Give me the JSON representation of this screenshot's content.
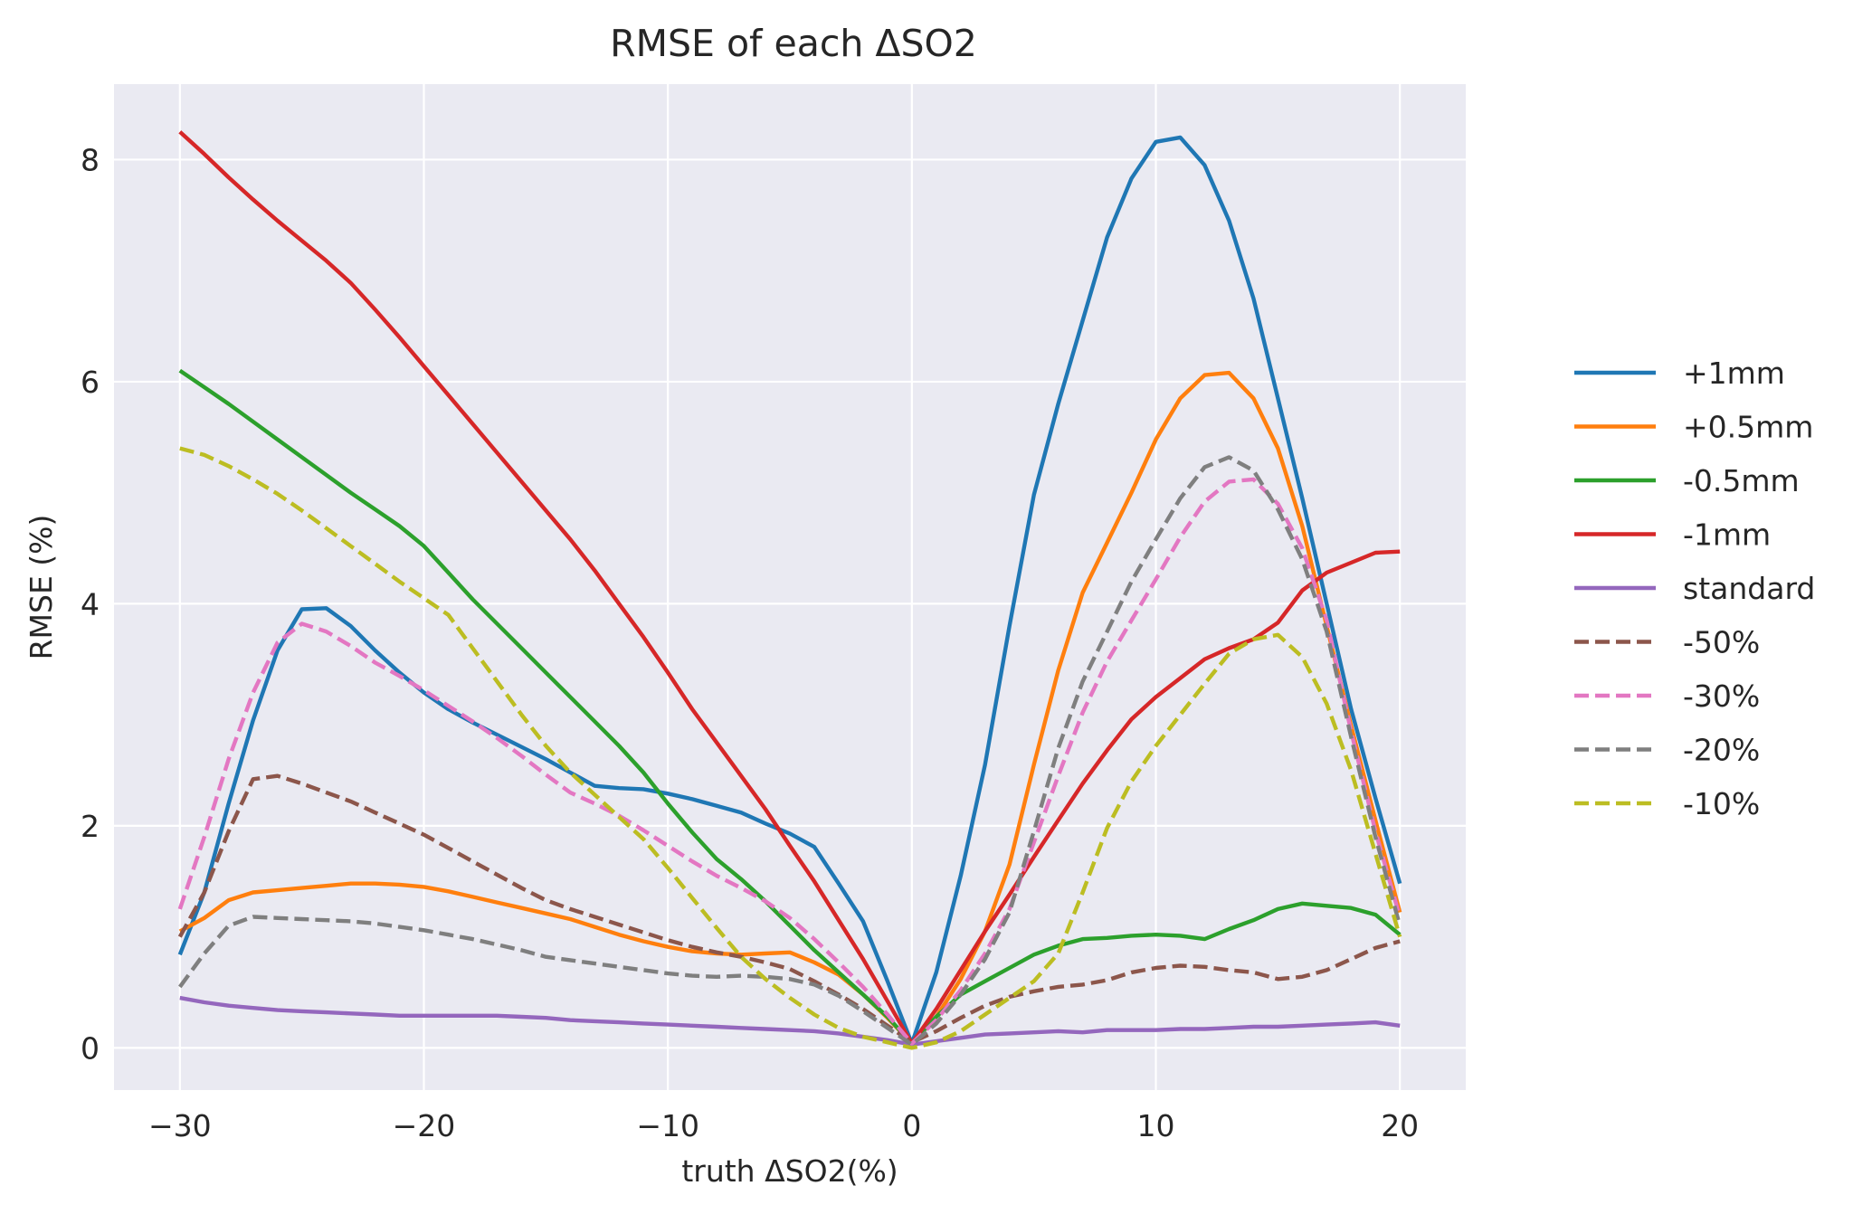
{
  "chart_data": {
    "type": "line",
    "title": "RMSE of each ΔSO2",
    "xlabel": "truth ΔSO2(%)",
    "ylabel": "RMSE (%)",
    "xlim": [
      -32.7,
      22.7
    ],
    "ylim": [
      -0.38,
      8.68
    ],
    "xticks": [
      -30,
      -20,
      -10,
      0,
      10,
      20
    ],
    "xtick_labels": [
      "−30",
      "−20",
      "−10",
      "0",
      "10",
      "20"
    ],
    "yticks": [
      0,
      2,
      4,
      6,
      8
    ],
    "ytick_labels": [
      "0",
      "2",
      "4",
      "6",
      "8"
    ],
    "grid": true,
    "legend_position": "right, outside plot",
    "x": [
      -30,
      -29,
      -28,
      -27,
      -26,
      -25,
      -24,
      -23,
      -22,
      -21,
      -20,
      -19,
      -18,
      -17,
      -16,
      -15,
      -14,
      -13,
      -12,
      -11,
      -10,
      -9,
      -8,
      -7,
      -6,
      -5,
      -4,
      -3,
      -2,
      -1,
      0,
      1,
      2,
      3,
      4,
      5,
      6,
      7,
      8,
      9,
      10,
      11,
      12,
      13,
      14,
      15,
      16,
      17,
      18,
      19,
      20
    ],
    "series": [
      {
        "name": "+1mm",
        "color": "#1f77b4",
        "style": "solid",
        "values": [
          0.84,
          1.4,
          2.2,
          2.95,
          3.58,
          3.95,
          3.96,
          3.8,
          3.58,
          3.38,
          3.2,
          3.05,
          2.93,
          2.82,
          2.71,
          2.6,
          2.48,
          2.36,
          2.34,
          2.33,
          2.29,
          2.24,
          2.18,
          2.12,
          2.02,
          1.93,
          1.81,
          1.48,
          1.14,
          0.6,
          0.04,
          0.68,
          1.55,
          2.55,
          3.8,
          4.98,
          5.8,
          6.55,
          7.3,
          7.83,
          8.16,
          8.2,
          7.95,
          7.45,
          6.75,
          5.85,
          4.95,
          4.0,
          3.05,
          2.25,
          1.48
        ]
      },
      {
        "name": "+0.5mm",
        "color": "#ff7f0e",
        "style": "solid",
        "values": [
          1.05,
          1.17,
          1.33,
          1.4,
          1.42,
          1.44,
          1.46,
          1.48,
          1.48,
          1.47,
          1.45,
          1.41,
          1.36,
          1.31,
          1.26,
          1.21,
          1.16,
          1.09,
          1.02,
          0.96,
          0.91,
          0.87,
          0.85,
          0.84,
          0.85,
          0.86,
          0.77,
          0.66,
          0.48,
          0.27,
          0.04,
          0.28,
          0.62,
          1.05,
          1.65,
          2.55,
          3.4,
          4.1,
          4.55,
          5.0,
          5.48,
          5.85,
          6.06,
          6.08,
          5.85,
          5.4,
          4.7,
          3.8,
          2.9,
          2.05,
          1.22
        ]
      },
      {
        "name": "-0.5mm",
        "color": "#2ca02c",
        "style": "solid",
        "values": [
          6.1,
          5.95,
          5.8,
          5.64,
          5.48,
          5.32,
          5.16,
          5.0,
          4.85,
          4.7,
          4.52,
          4.28,
          4.04,
          3.82,
          3.6,
          3.38,
          3.16,
          2.94,
          2.72,
          2.48,
          2.2,
          1.94,
          1.7,
          1.52,
          1.32,
          1.1,
          0.88,
          0.68,
          0.48,
          0.28,
          0.04,
          0.28,
          0.48,
          0.6,
          0.72,
          0.84,
          0.92,
          0.98,
          0.99,
          1.01,
          1.02,
          1.01,
          0.98,
          1.07,
          1.15,
          1.25,
          1.3,
          1.28,
          1.26,
          1.2,
          1.02
        ]
      },
      {
        "name": "-1mm",
        "color": "#d62728",
        "style": "solid",
        "values": [
          8.25,
          8.05,
          7.84,
          7.64,
          7.45,
          7.27,
          7.09,
          6.89,
          6.65,
          6.4,
          6.14,
          5.88,
          5.62,
          5.36,
          5.1,
          4.84,
          4.58,
          4.3,
          4.0,
          3.7,
          3.38,
          3.05,
          2.75,
          2.45,
          2.15,
          1.82,
          1.5,
          1.15,
          0.8,
          0.42,
          0.04,
          0.35,
          0.7,
          1.05,
          1.38,
          1.72,
          2.05,
          2.38,
          2.68,
          2.96,
          3.16,
          3.33,
          3.5,
          3.6,
          3.68,
          3.83,
          4.12,
          4.28,
          4.37,
          4.46,
          4.47
        ]
      },
      {
        "name": "standard",
        "color": "#9467bd",
        "style": "solid",
        "values": [
          0.45,
          0.41,
          0.38,
          0.36,
          0.34,
          0.33,
          0.32,
          0.31,
          0.3,
          0.29,
          0.29,
          0.29,
          0.29,
          0.29,
          0.28,
          0.27,
          0.25,
          0.24,
          0.23,
          0.22,
          0.21,
          0.2,
          0.19,
          0.18,
          0.17,
          0.16,
          0.15,
          0.13,
          0.1,
          0.07,
          0.03,
          0.06,
          0.09,
          0.12,
          0.13,
          0.14,
          0.15,
          0.14,
          0.16,
          0.16,
          0.16,
          0.17,
          0.17,
          0.18,
          0.19,
          0.19,
          0.2,
          0.21,
          0.22,
          0.23,
          0.2
        ]
      },
      {
        "name": "-50%",
        "color": "#8c564b",
        "style": "dashed",
        "values": [
          1.0,
          1.4,
          1.95,
          2.42,
          2.45,
          2.38,
          2.3,
          2.22,
          2.12,
          2.02,
          1.92,
          1.8,
          1.68,
          1.56,
          1.44,
          1.33,
          1.25,
          1.18,
          1.11,
          1.04,
          0.97,
          0.91,
          0.86,
          0.82,
          0.77,
          0.71,
          0.6,
          0.48,
          0.35,
          0.2,
          0.05,
          0.15,
          0.27,
          0.38,
          0.46,
          0.51,
          0.55,
          0.57,
          0.61,
          0.68,
          0.72,
          0.74,
          0.73,
          0.7,
          0.68,
          0.62,
          0.64,
          0.7,
          0.8,
          0.9,
          0.96
        ]
      },
      {
        "name": "-30%",
        "color": "#e377c2",
        "style": "dashed",
        "values": [
          1.25,
          1.9,
          2.6,
          3.2,
          3.65,
          3.82,
          3.75,
          3.62,
          3.47,
          3.35,
          3.22,
          3.08,
          2.94,
          2.79,
          2.63,
          2.46,
          2.3,
          2.2,
          2.09,
          1.96,
          1.82,
          1.68,
          1.55,
          1.44,
          1.32,
          1.17,
          0.98,
          0.77,
          0.55,
          0.3,
          0.04,
          0.25,
          0.52,
          0.85,
          1.25,
          1.85,
          2.45,
          3.02,
          3.48,
          3.85,
          4.22,
          4.6,
          4.92,
          5.1,
          5.12,
          4.9,
          4.5,
          3.85,
          2.85,
          1.95,
          1.18
        ]
      },
      {
        "name": "-20%",
        "color": "#7f7f7f",
        "style": "dashed",
        "values": [
          0.55,
          0.85,
          1.1,
          1.18,
          1.17,
          1.16,
          1.15,
          1.14,
          1.12,
          1.09,
          1.06,
          1.02,
          0.98,
          0.93,
          0.88,
          0.82,
          0.79,
          0.76,
          0.73,
          0.7,
          0.67,
          0.65,
          0.64,
          0.65,
          0.64,
          0.62,
          0.57,
          0.47,
          0.33,
          0.18,
          0.03,
          0.22,
          0.48,
          0.8,
          1.22,
          1.95,
          2.7,
          3.3,
          3.75,
          4.2,
          4.58,
          4.95,
          5.23,
          5.32,
          5.2,
          4.85,
          4.4,
          3.75,
          2.8,
          1.9,
          1.1
        ]
      },
      {
        "name": "-10%",
        "color": "#bcbd22",
        "style": "dashed",
        "values": [
          5.4,
          5.34,
          5.24,
          5.12,
          4.99,
          4.84,
          4.68,
          4.52,
          4.36,
          4.2,
          4.05,
          3.9,
          3.6,
          3.3,
          3.0,
          2.72,
          2.48,
          2.28,
          2.08,
          1.88,
          1.62,
          1.35,
          1.08,
          0.82,
          0.62,
          0.45,
          0.3,
          0.18,
          0.1,
          0.05,
          0.0,
          0.05,
          0.15,
          0.3,
          0.45,
          0.6,
          0.85,
          1.4,
          1.98,
          2.4,
          2.72,
          3.0,
          3.28,
          3.55,
          3.68,
          3.72,
          3.52,
          3.1,
          2.5,
          1.75,
          1.0
        ]
      }
    ]
  }
}
